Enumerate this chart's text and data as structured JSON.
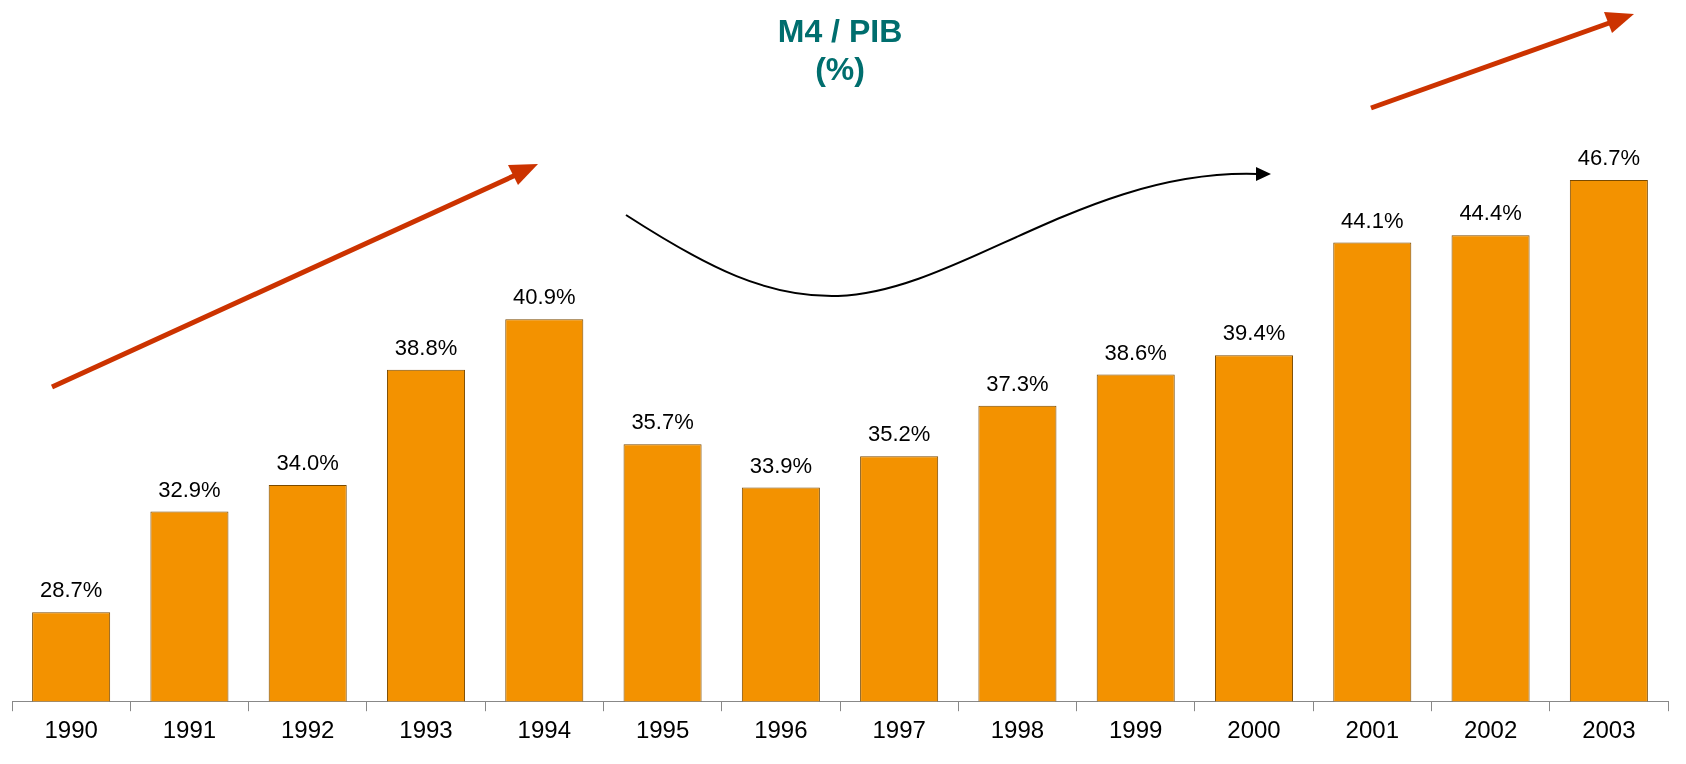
{
  "chart_data": {
    "type": "bar",
    "title": "M4 / PIB",
    "subtitle": "(%)",
    "categories": [
      "1990",
      "1991",
      "1992",
      "1993",
      "1994",
      "1995",
      "1996",
      "1997",
      "1998",
      "1999",
      "2000",
      "2001",
      "2002",
      "2003"
    ],
    "values": [
      28.7,
      32.9,
      34.0,
      38.8,
      40.9,
      35.7,
      33.9,
      35.2,
      37.3,
      38.6,
      39.4,
      44.1,
      44.4,
      46.7
    ],
    "value_labels": [
      "28.7%",
      "32.9%",
      "34.0%",
      "38.8%",
      "40.9%",
      "35.7%",
      "33.9%",
      "35.2%",
      "37.3%",
      "38.6%",
      "39.4%",
      "44.1%",
      "44.4%",
      "46.7%"
    ],
    "color": "#f39200",
    "tick_labels": "x",
    "legend": false
  }
}
